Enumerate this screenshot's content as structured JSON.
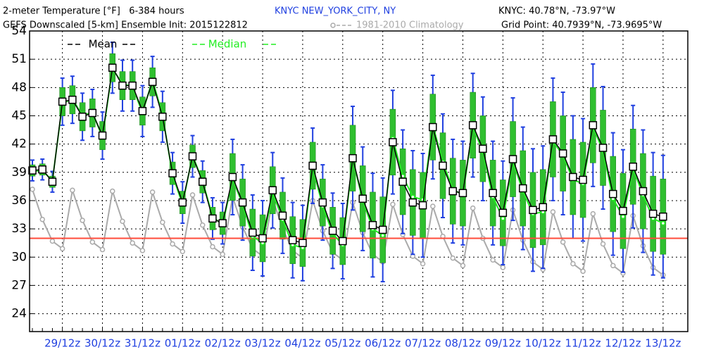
{
  "chart_data": {
    "type": "ensemble",
    "title": "2-meter Temperature [°F]   6-384 hours",
    "station": "KNYC NEW_YORK_CITY, NY",
    "station_location": "KNYC: 40.78°N, -73.97°W",
    "subtitle": "GEFS Downscaled [5-km] Ensemble Init: 2015122812",
    "grid_point": "Grid Point: 40.7939°N, -73.9695°W",
    "categories": [
      null,
      null,
      null,
      "29/12z",
      null,
      null,
      null,
      "30/12z",
      null,
      null,
      null,
      "31/12z",
      null,
      null,
      null,
      "01/12z",
      null,
      null,
      null,
      "02/12z",
      null,
      null,
      null,
      "03/12z",
      null,
      null,
      null,
      "04/12z",
      null,
      null,
      null,
      "05/12z",
      null,
      null,
      null,
      "06/12z",
      null,
      null,
      null,
      "07/12z",
      null,
      null,
      null,
      "08/12z",
      null,
      null,
      null,
      "09/12z",
      null,
      null,
      null,
      "10/12z",
      null,
      null,
      null,
      "11/12z",
      null,
      null,
      null,
      "12/12z",
      null,
      null,
      null,
      "13/12z"
    ],
    "ylim": [
      22.1,
      54
    ],
    "yticks": [
      24,
      27,
      30,
      33,
      36,
      39,
      42,
      45,
      48,
      51,
      54
    ],
    "grid": true,
    "reference_line": {
      "value": 32,
      "color": "#ff4a3a"
    },
    "series": [
      {
        "name": "Mean",
        "color": "#000000",
        "values": [
          39.2,
          39.3,
          38.0,
          46.5,
          46.7,
          44.9,
          45.3,
          42.9,
          50.1,
          48.2,
          48.2,
          45.5,
          48.6,
          44.9,
          38.9,
          35.8,
          40.7,
          38.0,
          34.1,
          33.6,
          38.5,
          35.8,
          32.6,
          32.0,
          37.1,
          34.4,
          31.8,
          31.5,
          39.7,
          35.8,
          32.8,
          31.7,
          40.5,
          36.2,
          33.4,
          32.9,
          42.2,
          38.0,
          35.8,
          35.5,
          43.8,
          39.7,
          37.0,
          36.8,
          44.0,
          41.5,
          36.8,
          34.7,
          40.4,
          37.3,
          35.0,
          35.3,
          42.5,
          41.0,
          38.5,
          38.2,
          44.0,
          41.6,
          36.7,
          34.9,
          39.6,
          37.0,
          34.6,
          34.3
        ]
      },
      {
        "name": "Median",
        "color": "#22ee22",
        "values": [
          39.1,
          39.2,
          38.1,
          46.3,
          46.8,
          45.0,
          45.4,
          42.7,
          50.0,
          48.4,
          48.1,
          45.3,
          48.8,
          45.1,
          38.7,
          35.6,
          40.8,
          38.1,
          34.3,
          33.4,
          38.3,
          35.6,
          32.2,
          31.5,
          36.8,
          34.0,
          31.3,
          31.0,
          39.5,
          35.4,
          32.5,
          31.3,
          40.4,
          36.0,
          33.0,
          32.3,
          42.6,
          38.6,
          36.4,
          36.1,
          44.0,
          40.1,
          37.2,
          36.6,
          43.8,
          41.2,
          36.4,
          34.1,
          40.1,
          37.0,
          34.6,
          34.8,
          42.3,
          40.8,
          38.2,
          37.8,
          43.8,
          41.3,
          36.2,
          34.3,
          39.4,
          36.6,
          34.1,
          33.6
        ]
      },
      {
        "name": "1981-2010 Climatology",
        "color": "#aaaaaa",
        "values": [
          37.2,
          34.0,
          31.7,
          30.9,
          37.1,
          33.9,
          31.6,
          30.8,
          37.0,
          33.8,
          31.5,
          30.7,
          36.9,
          33.7,
          31.4,
          30.6,
          36.6,
          33.4,
          31.1,
          30.3,
          36.4,
          33.2,
          30.9,
          30.1,
          36.2,
          33.0,
          30.7,
          29.9,
          36.0,
          32.8,
          30.5,
          29.7,
          35.8,
          32.6,
          30.3,
          29.5,
          35.6,
          32.4,
          30.1,
          29.3,
          35.4,
          32.2,
          29.9,
          29.1,
          35.2,
          32.0,
          29.7,
          28.9,
          35.0,
          31.8,
          29.5,
          28.7,
          34.8,
          31.6,
          29.3,
          28.5,
          34.6,
          31.4,
          29.1,
          28.3,
          34.4,
          31.2,
          28.9,
          28.1
        ]
      }
    ],
    "boxes": {
      "color": "#2fbf2f",
      "whisker_color": "#2040e0",
      "low": [
        38.6,
        38.7,
        37.4,
        45.0,
        45.2,
        43.4,
        43.8,
        41.4,
        48.6,
        46.7,
        46.7,
        44.0,
        47.1,
        43.4,
        37.7,
        34.6,
        39.5,
        36.8,
        32.9,
        32.4,
        36.0,
        33.3,
        30.1,
        29.5,
        34.6,
        31.9,
        29.3,
        29.0,
        37.2,
        33.3,
        30.3,
        29.2,
        37.0,
        32.7,
        29.9,
        29.4,
        38.7,
        34.5,
        32.3,
        32.0,
        40.3,
        36.2,
        33.5,
        33.3,
        40.5,
        38.0,
        33.3,
        31.2,
        36.4,
        33.3,
        31.0,
        31.3,
        38.5,
        37.0,
        34.5,
        34.2,
        40.0,
        37.6,
        32.7,
        30.9,
        35.6,
        33.0,
        30.6,
        30.3
      ],
      "high": [
        39.8,
        39.9,
        38.6,
        48.0,
        48.2,
        46.4,
        46.8,
        44.4,
        51.6,
        49.7,
        49.7,
        47.0,
        50.1,
        46.4,
        40.1,
        37.0,
        41.9,
        39.2,
        35.3,
        34.8,
        41.0,
        38.3,
        35.1,
        34.5,
        39.6,
        36.9,
        34.3,
        34.0,
        42.2,
        38.3,
        35.3,
        34.2,
        44.0,
        39.7,
        36.9,
        36.4,
        45.7,
        41.5,
        39.3,
        39.0,
        47.3,
        43.2,
        40.5,
        40.3,
        47.5,
        45.0,
        40.3,
        38.2,
        44.4,
        41.3,
        39.0,
        39.3,
        46.5,
        45.0,
        42.5,
        42.2,
        48.0,
        45.6,
        40.7,
        38.9,
        43.6,
        41.0,
        38.6,
        38.3
      ],
      "min": [
        38.1,
        38.2,
        36.9,
        44.0,
        44.2,
        42.4,
        42.8,
        40.4,
        47.4,
        45.5,
        45.5,
        42.8,
        45.9,
        42.2,
        36.7,
        33.6,
        38.5,
        35.8,
        31.9,
        31.4,
        34.5,
        31.8,
        28.6,
        28.0,
        33.1,
        30.4,
        27.8,
        27.5,
        35.7,
        31.8,
        28.8,
        27.7,
        35.0,
        30.7,
        27.9,
        27.4,
        36.7,
        32.5,
        30.3,
        30.0,
        38.3,
        34.2,
        31.5,
        31.3,
        38.5,
        36.0,
        31.3,
        29.2,
        33.9,
        30.8,
        28.5,
        28.8,
        36.0,
        34.5,
        32.0,
        31.7,
        37.5,
        35.1,
        30.2,
        28.4,
        33.1,
        30.5,
        28.1,
        27.8
      ],
      "max": [
        40.3,
        40.4,
        39.1,
        49.0,
        49.2,
        47.4,
        47.8,
        45.4,
        52.8,
        50.9,
        50.9,
        48.2,
        51.3,
        47.6,
        41.1,
        38.0,
        42.9,
        40.2,
        36.3,
        35.8,
        42.5,
        39.8,
        36.6,
        36.0,
        41.1,
        38.4,
        35.8,
        35.5,
        43.7,
        39.8,
        36.8,
        35.7,
        46.0,
        41.7,
        38.9,
        38.4,
        47.7,
        43.5,
        41.3,
        41.0,
        49.3,
        45.2,
        42.5,
        42.3,
        49.5,
        47.0,
        42.3,
        40.2,
        46.9,
        43.8,
        41.5,
        41.8,
        49.0,
        47.5,
        45.0,
        44.7,
        50.5,
        48.1,
        43.2,
        41.4,
        46.1,
        43.5,
        41.1,
        40.8
      ]
    }
  }
}
